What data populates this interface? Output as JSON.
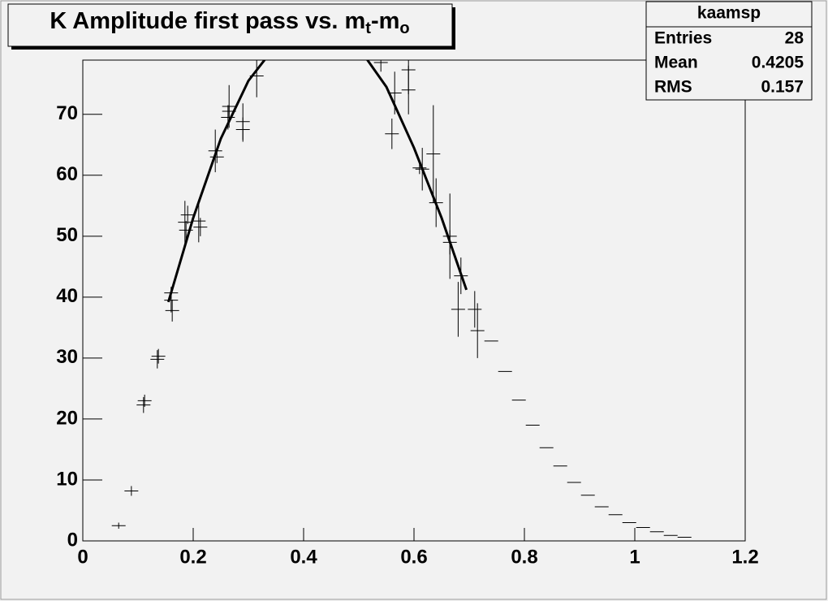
{
  "chart_data": {
    "type": "errorbar",
    "title": [
      {
        "text": "K Amplitude first pass vs. m"
      },
      {
        "text": "t",
        "sub": true
      },
      {
        "text": "-m"
      },
      {
        "text": "o",
        "sub": true
      }
    ],
    "stats": {
      "name": "kaamsp",
      "rows": [
        [
          "Entries",
          28
        ],
        [
          "Mean",
          0.4205
        ],
        [
          "RMS",
          0.157
        ]
      ]
    },
    "xlim": [
      0,
      1.2
    ],
    "xticks": [
      0,
      0.2,
      0.4,
      0.6,
      0.8,
      1,
      1.2
    ],
    "ylim": [
      0,
      78.9
    ],
    "yticks": [
      0,
      10,
      20,
      30,
      40,
      50,
      60,
      70
    ],
    "series": [
      {
        "color": "#000000",
        "xerr": 0.0125,
        "x": [
          0.065,
          0.088,
          0.11,
          0.112,
          0.135,
          0.137,
          0.16,
          0.162,
          0.16,
          0.185,
          0.19,
          0.187,
          0.21,
          0.213,
          0.24,
          0.243,
          0.265,
          0.263,
          0.265,
          0.29,
          0.29,
          0.315,
          0.54,
          0.565,
          0.56,
          0.59,
          0.59,
          0.615,
          0.61,
          0.635,
          0.64,
          0.665,
          0.665,
          0.685,
          0.68,
          0.71,
          0.715,
          0.74,
          0.765,
          0.79,
          0.815,
          0.84,
          0.865,
          0.89,
          0.915,
          0.94,
          0.965,
          0.99,
          1.015,
          1.04,
          1.065,
          1.09
        ],
        "values": [
          2.5,
          8.2,
          22.3,
          23,
          29.8,
          30.3,
          39.5,
          37.8,
          40.7,
          52.3,
          53.5,
          51,
          52.5,
          51.5,
          64,
          63,
          71.3,
          69.5,
          70.5,
          68.8,
          67.5,
          76.3,
          78.5,
          73.5,
          66.8,
          77.3,
          74,
          61,
          61.2,
          63.5,
          55.5,
          50,
          49,
          43.5,
          38,
          38,
          34.5,
          32.8,
          27.8,
          23.1,
          19,
          15.3,
          12.3,
          9.6,
          7.5,
          5.6,
          4.3,
          3,
          2.2,
          1.5,
          0.9,
          0.6
        ],
        "yerr": [
          0.5,
          0.8,
          1.3,
          1,
          1.5,
          1.2,
          2,
          1.8,
          1,
          3.5,
          1.5,
          1.5,
          3.5,
          1.5,
          3.5,
          1,
          3.5,
          2,
          1,
          3,
          2,
          3.5,
          1.5,
          3.5,
          2.5,
          4,
          4,
          3.5,
          1,
          8,
          4,
          7,
          2,
          3,
          4.5,
          3,
          4.5,
          0,
          0,
          0,
          0,
          0,
          0,
          0,
          0,
          0,
          0,
          0,
          0,
          0,
          0,
          0
        ]
      }
    ],
    "fits": [
      {
        "color": "#000000",
        "x": [
          0.155,
          0.2,
          0.25,
          0.3,
          0.33
        ],
        "values": [
          39.2,
          53,
          66,
          75.5,
          79
        ]
      },
      {
        "color": "#000000",
        "x": [
          0.515,
          0.55,
          0.6,
          0.65,
          0.695
        ],
        "values": [
          79,
          74.5,
          64.5,
          53,
          41.2
        ]
      }
    ]
  }
}
